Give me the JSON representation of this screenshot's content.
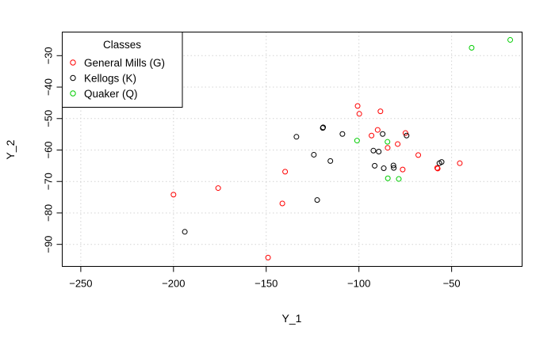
{
  "chart_data": {
    "type": "scatter",
    "xlabel": "Y_1",
    "ylabel": "Y_2",
    "xlim": [
      -260,
      -12
    ],
    "ylim": [
      -97,
      -22.5
    ],
    "x_ticks": [
      -250,
      -200,
      -150,
      -100,
      -50
    ],
    "y_ticks": [
      -90,
      -80,
      -70,
      -60,
      -50,
      -40,
      -30
    ],
    "grid": true,
    "legend": {
      "title": "Classes",
      "position": "top-left",
      "entries": [
        "General Mills (G)",
        "Kellogs (K)",
        "Quaker (Q)"
      ]
    },
    "colors": {
      "General Mills (G)": "#ff0000",
      "Kellogs (K)": "#000000",
      "Quaker (Q)": "#00cd00"
    },
    "series": [
      {
        "name": "General Mills (G)",
        "points": [
          [
            -200.0,
            -74.2
          ],
          [
            -175.9,
            -72.1
          ],
          [
            -149.0,
            -94.2
          ],
          [
            -141.3,
            -77.0
          ],
          [
            -139.8,
            -66.9
          ],
          [
            -100.7,
            -46.0
          ],
          [
            -99.8,
            -48.5
          ],
          [
            -93.2,
            -55.4
          ],
          [
            -89.9,
            -53.6
          ],
          [
            -88.4,
            -47.7
          ],
          [
            -84.5,
            -59.3
          ],
          [
            -79.1,
            -58.1
          ],
          [
            -76.4,
            -66.2
          ],
          [
            -74.9,
            -54.6
          ],
          [
            -68.0,
            -61.6
          ],
          [
            -57.8,
            -65.7
          ],
          [
            -57.5,
            -65.9
          ],
          [
            -45.6,
            -64.2
          ]
        ]
      },
      {
        "name": "Kellogs (K)",
        "points": [
          [
            -193.9,
            -86.0
          ],
          [
            -133.7,
            -55.8
          ],
          [
            -124.3,
            -61.5
          ],
          [
            -122.5,
            -75.9
          ],
          [
            -119.5,
            -53.0
          ],
          [
            -119.3,
            -52.8
          ],
          [
            -115.4,
            -63.5
          ],
          [
            -108.9,
            -54.9
          ],
          [
            -92.2,
            -60.2
          ],
          [
            -91.5,
            -65.0
          ],
          [
            -89.3,
            -60.5
          ],
          [
            -87.2,
            -54.9
          ],
          [
            -86.6,
            -65.8
          ],
          [
            -81.4,
            -64.9
          ],
          [
            -81.2,
            -65.7
          ],
          [
            -74.3,
            -55.4
          ],
          [
            -56.6,
            -64.2
          ],
          [
            -55.4,
            -63.8
          ]
        ]
      },
      {
        "name": "Quaker (Q)",
        "points": [
          [
            -101.0,
            -57.0
          ],
          [
            -84.6,
            -57.4
          ],
          [
            -84.4,
            -69.0
          ],
          [
            -78.5,
            -69.2
          ],
          [
            -39.2,
            -27.5
          ],
          [
            -18.4,
            -25.0
          ]
        ]
      }
    ]
  }
}
